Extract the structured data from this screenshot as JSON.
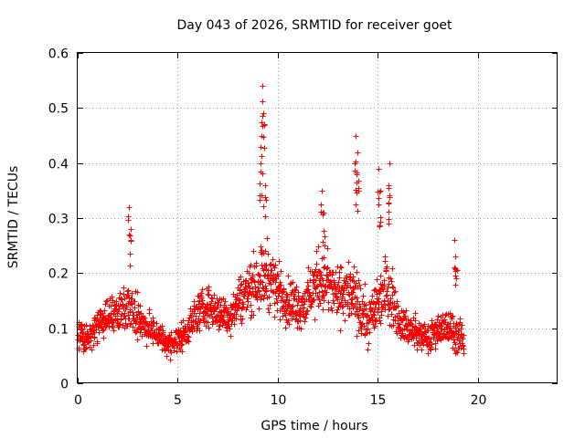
{
  "chart_data": {
    "type": "scatter",
    "title": "Day 043 of 2026, SRMTID for receiver goet",
    "xlabel": "GPS time / hours",
    "ylabel": "SRMTID / TECUs",
    "xlim": [
      0,
      24
    ],
    "ylim": [
      0,
      0.6
    ],
    "xticks": [
      0,
      5,
      10,
      15,
      20
    ],
    "yticks": [
      0,
      0.1,
      0.2,
      0.3,
      0.4,
      0.5,
      0.6
    ],
    "xtick_labels": [
      "0",
      "5",
      "10",
      "15",
      "20"
    ],
    "ytick_labels": [
      "0",
      "0.1",
      "0.2",
      "0.3",
      "0.4",
      "0.5",
      "0.6"
    ],
    "grid": true,
    "marker": "+",
    "color": "#ff0000",
    "series": [
      {
        "name": "SRMTID",
        "profile": {
          "x": [
            0,
            0.5,
            1,
            1.5,
            2,
            2.5,
            3,
            3.5,
            4,
            4.5,
            5,
            5.5,
            6,
            6.5,
            7,
            7.5,
            8,
            8.5,
            9,
            9.5,
            10,
            10.5,
            11,
            11.5,
            12,
            12.5,
            13,
            13.5,
            14,
            14.5,
            15,
            15.5,
            16,
            16.5,
            17,
            17.5,
            18,
            18.5,
            19,
            19.3
          ],
          "median": [
            0.09,
            0.08,
            0.11,
            0.12,
            0.13,
            0.14,
            0.12,
            0.1,
            0.09,
            0.07,
            0.08,
            0.1,
            0.13,
            0.14,
            0.13,
            0.12,
            0.15,
            0.17,
            0.19,
            0.2,
            0.17,
            0.15,
            0.14,
            0.15,
            0.19,
            0.18,
            0.16,
            0.17,
            0.14,
            0.11,
            0.15,
            0.18,
            0.12,
            0.1,
            0.09,
            0.08,
            0.1,
            0.1,
            0.09,
            0.07
          ],
          "spread": [
            0.04,
            0.04,
            0.04,
            0.05,
            0.05,
            0.06,
            0.05,
            0.04,
            0.04,
            0.03,
            0.04,
            0.04,
            0.05,
            0.05,
            0.05,
            0.05,
            0.06,
            0.07,
            0.08,
            0.09,
            0.07,
            0.06,
            0.06,
            0.07,
            0.08,
            0.08,
            0.07,
            0.08,
            0.08,
            0.06,
            0.08,
            0.09,
            0.05,
            0.04,
            0.04,
            0.04,
            0.04,
            0.05,
            0.05,
            0.03
          ]
        },
        "peaks": [
          {
            "x": 2.55,
            "y": 0.32
          },
          {
            "x": 2.65,
            "y": 0.28
          },
          {
            "x": 9.25,
            "y": 0.54
          },
          {
            "x": 9.3,
            "y": 0.49
          },
          {
            "x": 9.2,
            "y": 0.45
          },
          {
            "x": 9.15,
            "y": 0.4
          },
          {
            "x": 9.35,
            "y": 0.36
          },
          {
            "x": 12.2,
            "y": 0.35
          },
          {
            "x": 12.3,
            "y": 0.31
          },
          {
            "x": 13.9,
            "y": 0.45
          },
          {
            "x": 14.0,
            "y": 0.42
          },
          {
            "x": 13.95,
            "y": 0.38
          },
          {
            "x": 15.05,
            "y": 0.39
          },
          {
            "x": 15.15,
            "y": 0.35
          },
          {
            "x": 15.6,
            "y": 0.4
          },
          {
            "x": 15.55,
            "y": 0.36
          },
          {
            "x": 18.85,
            "y": 0.26
          },
          {
            "x": 18.9,
            "y": 0.23
          }
        ]
      }
    ]
  }
}
